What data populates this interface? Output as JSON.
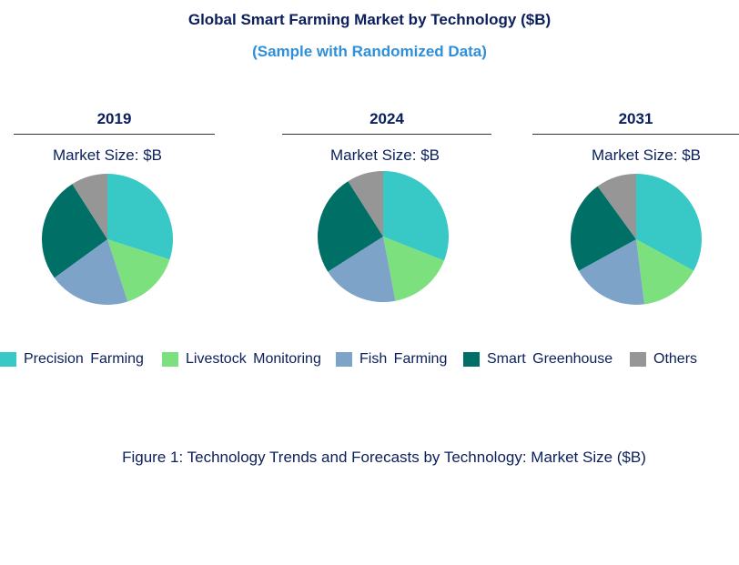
{
  "chart_data": {
    "type": "pie",
    "title": "Global Smart Farming Market by Technology ($B)",
    "subtitle": "(Sample with Randomized Data)",
    "categories": [
      "Precision Farming",
      "Livestock  Monitoring",
      "Fish  Farming",
      "Smart  Greenhouse",
      "Others"
    ],
    "colors": [
      "#38c8c5",
      "#7ce07e",
      "#7ea3c8",
      "#006f66",
      "#969696"
    ],
    "pies": [
      {
        "year": "2019",
        "label": "Market Size: $B",
        "values": [
          30,
          15,
          20,
          26,
          9
        ]
      },
      {
        "year": "2024",
        "label": "Market Size: $B",
        "values": [
          31,
          16,
          19,
          25,
          9
        ]
      },
      {
        "year": "2031",
        "label": "Market Size: $B",
        "values": [
          33,
          15,
          19,
          23,
          10
        ]
      }
    ],
    "legend_position": "bottom",
    "caption": "Figure 1: Technology Trends and Forecasts by Technology: Market Size ($B)"
  }
}
